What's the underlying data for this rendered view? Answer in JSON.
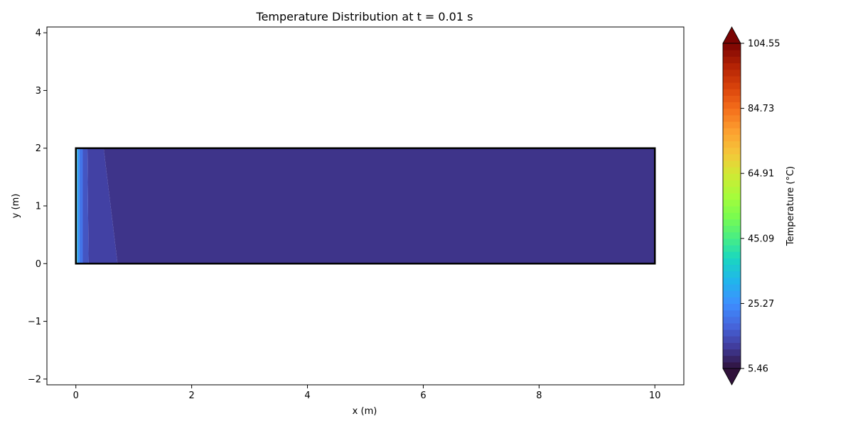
{
  "chart_data": {
    "type": "heatmap",
    "title": "Temperature Distribution at t = 0.01 s",
    "xlabel": "x (m)",
    "ylabel": "y (m)",
    "xlim": [
      -0.5,
      10.5
    ],
    "ylim": [
      -2.1,
      4.1
    ],
    "xticks": [
      0,
      2,
      4,
      6,
      8,
      10
    ],
    "yticks": [
      -2,
      -1,
      0,
      1,
      2,
      3,
      4
    ],
    "xtick_labels": [
      "0",
      "2",
      "4",
      "6",
      "8",
      "10"
    ],
    "ytick_labels": [
      "−2",
      "−1",
      "0",
      "1",
      "2",
      "3",
      "4"
    ],
    "domain": {
      "x": [
        0,
        10
      ],
      "y": [
        0,
        2
      ]
    },
    "grid": false,
    "colormap": "turbo",
    "colorbar": {
      "label": "Temperature (°C)",
      "min": 5.46,
      "max": 104.55,
      "tick_values": [
        5.46,
        25.27,
        45.09,
        64.91,
        84.73,
        104.55
      ],
      "tick_labels": [
        "5.46",
        "25.27",
        "45.09",
        "64.91",
        "84.73",
        "104.55"
      ],
      "levels": 50,
      "extend": "both"
    },
    "field_bands": [
      {
        "x_bottom_start": 0.0,
        "x_bottom_end": 0.02,
        "x_top_start": 0.0,
        "x_top_end": 0.02,
        "temperature": 50
      },
      {
        "x_bottom_start": 0.02,
        "x_bottom_end": 0.06,
        "x_top_start": 0.02,
        "x_top_end": 0.06,
        "temperature": 27
      },
      {
        "x_bottom_start": 0.06,
        "x_bottom_end": 0.12,
        "x_top_start": 0.06,
        "x_top_end": 0.12,
        "temperature": 21
      },
      {
        "x_bottom_start": 0.12,
        "x_bottom_end": 0.22,
        "x_top_start": 0.12,
        "x_top_end": 0.2,
        "temperature": 16
      },
      {
        "x_bottom_start": 0.22,
        "x_bottom_end": 0.72,
        "x_top_start": 0.2,
        "x_top_end": 0.48,
        "temperature": 13
      },
      {
        "x_bottom_start": 0.72,
        "x_bottom_end": 10.0,
        "x_top_start": 0.48,
        "x_top_end": 10.0,
        "temperature": 11
      }
    ]
  }
}
